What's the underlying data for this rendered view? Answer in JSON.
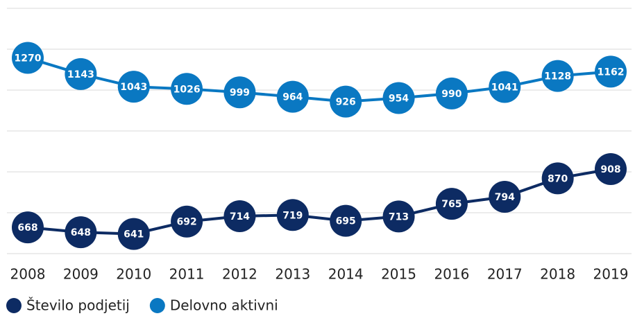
{
  "chart_data": {
    "type": "line",
    "categories": [
      "2008",
      "2009",
      "2010",
      "2011",
      "2012",
      "2013",
      "2014",
      "2015",
      "2016",
      "2017",
      "2018",
      "2019"
    ],
    "series": [
      {
        "name": "Število podjetij",
        "color": "#0d2b63",
        "values": [
          668,
          648,
          641,
          692,
          714,
          719,
          695,
          713,
          765,
          794,
          870,
          908
        ]
      },
      {
        "name": "Delovno aktivni",
        "color": "#0a78c2",
        "axis": "y2",
        "values": [
          1270,
          1143,
          1043,
          1026,
          999,
          964,
          926,
          954,
          990,
          1041,
          1128,
          1162
        ]
      }
    ],
    "ylim": [
      560,
      1570
    ],
    "y2lim": [
      -270,
      1660
    ],
    "grid": true,
    "legend": "bottom-left"
  }
}
